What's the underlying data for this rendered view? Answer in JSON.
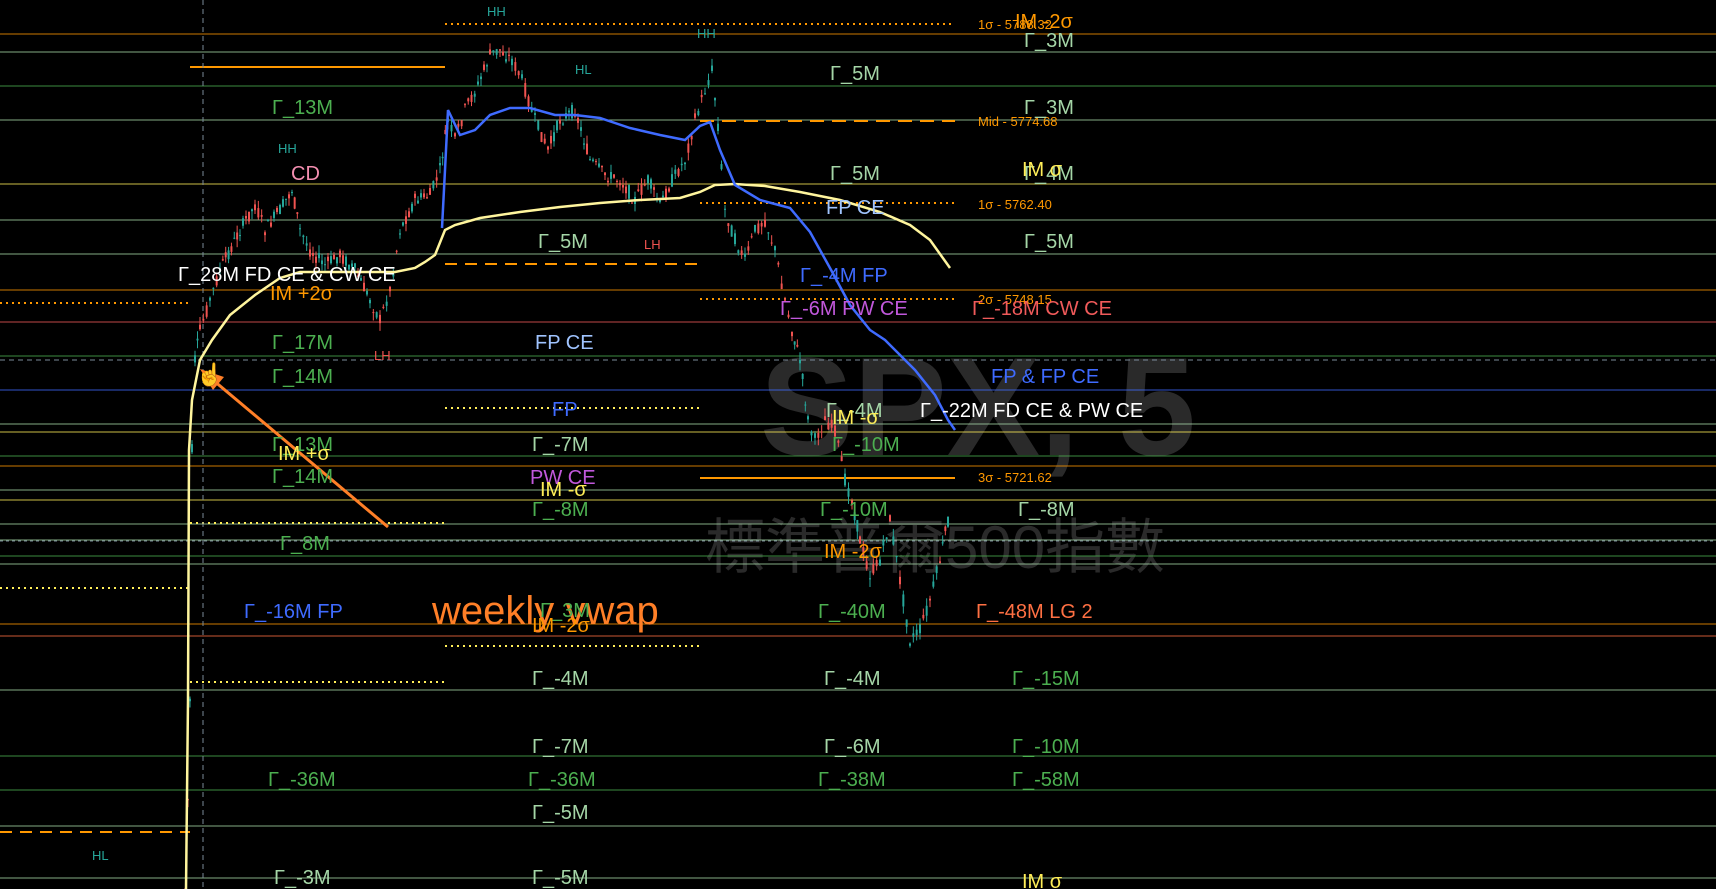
{
  "chart_data": {
    "type": "line",
    "title": "",
    "xlabel": "",
    "ylabel": "",
    "watermark": {
      "symbol": "SPX, 5",
      "name": "標準普爾500指數"
    },
    "colors": {
      "background": "#000000",
      "up_candle": "#26a69a",
      "down_candle": "#ef5350",
      "gamma_label": "#4caf50",
      "gamma_label_neg": "#a5d6a7",
      "vwap_yellow": "#fff59d",
      "vwap_blue": "#3f6bff",
      "sigma_orange": "#ff9800",
      "fp_blue": "#3f6bff",
      "pw_magenta": "#c158dc",
      "cw_red": "#f05a5a",
      "annotation_arrow": "#ff7f27"
    },
    "price_levels": [
      {
        "label": "1σ - 5788.32"
      },
      {
        "label": "Mid - 5774.68"
      },
      {
        "label": "1σ - 5762.40"
      },
      {
        "label": "2σ - 5748.15"
      },
      {
        "label": "3σ - 5721.62"
      }
    ],
    "annotations": {
      "weekly_vwap": "weekly vwap",
      "gamma": [
        "Γ_13M",
        "Γ_28M  FD CE & CW CE",
        "Γ_17M",
        "Γ_14M",
        "Γ_13M",
        "Γ_14M",
        "Γ_8M",
        "Γ_-16M  FP",
        "Γ_-36M",
        "Γ_-3M",
        "Γ_5M",
        "FP CE",
        "FP",
        "Γ_-7M",
        "PW CE",
        "Γ_-8M",
        "Γ_3M",
        "Γ_-4M",
        "Γ_-7M",
        "Γ_-36M",
        "Γ_-5M",
        "Γ_-5M",
        "Γ_5M",
        "Γ_5M",
        "FP CE",
        "Γ_-4M  FP",
        "Γ_-6M  PW CE",
        "Γ_-4M",
        "Γ_-10M",
        "Γ_-10M",
        "Γ_-40M",
        "Γ_-4M",
        "Γ_-6M",
        "Γ_-38M",
        "Γ_3M",
        "Γ_3M",
        "Γ_4M",
        "Γ_5M",
        "Γ_-18M  CW CE",
        "FP & FP CE",
        "Γ_-22M  FD CE & PW CE",
        "Γ_-8M",
        "Γ_-48M  LG 2",
        "Γ_-15M",
        "Γ_-10M",
        "Γ_-58M"
      ],
      "im": [
        "IM +2σ",
        "IM +σ",
        "IM -σ",
        "IM -2σ",
        "IM -σ",
        "IM -2σ",
        "IM -2σ",
        "IM σ",
        "IM σ"
      ],
      "swing": [
        "HH",
        "CD",
        "HH",
        "HL",
        "LH",
        "LH",
        "HH",
        "HL"
      ]
    }
  }
}
